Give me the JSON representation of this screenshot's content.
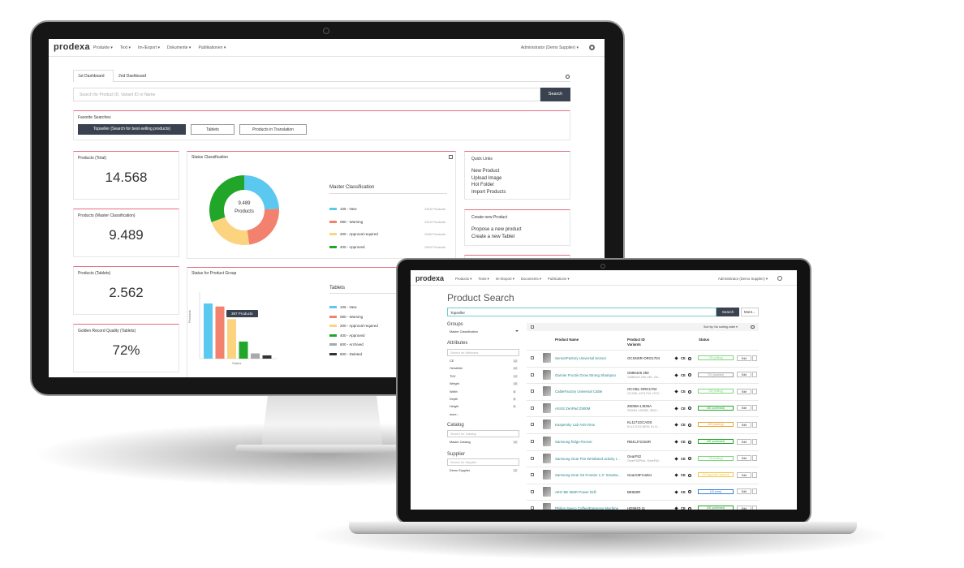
{
  "monitor": {
    "nav": {
      "logo": "prodexa",
      "menu": [
        "Produkte ▾",
        "Text ▾",
        "Im-/Export ▾",
        "Dokumente ▾",
        "Publikationen ▾"
      ],
      "user": "Administrator (Demo Supplier) ▾"
    },
    "tabs": [
      "1st Dashboard",
      "2nd Dashboard"
    ],
    "search": {
      "placeholder": "Search for Product ID, Variant ID or Name",
      "button": "Search"
    },
    "favorites": {
      "title": "Favorite Searches",
      "items": [
        "Topseller (Search for best-selling products)",
        "Tablets",
        "Products in Translation"
      ]
    },
    "kpis": [
      {
        "label": "Products (Total)",
        "value": "14.568"
      },
      {
        "label": "Products (Master Classification)",
        "value": "9.489"
      },
      {
        "label": "Products (Tablets)",
        "value": "2.562"
      },
      {
        "label": "Golden Record Quality (Tablets)",
        "value": "72%"
      }
    ],
    "status_classification": {
      "title": "Status Classification",
      "center_value": "9.489",
      "center_label": "Products",
      "legend_title": "Master Classification",
      "items": [
        {
          "name": "105 - New",
          "color": "#5bc8f0",
          "value": 2316,
          "value_label": "2316 Products"
        },
        {
          "name": "080 - Warning",
          "color": "#f2826e",
          "value": 2210,
          "value_label": "2210 Products"
        },
        {
          "name": "200 - Approval required",
          "color": "#fcd37f",
          "value": 2060,
          "value_label": "2060 Products"
        },
        {
          "name": "400 - Approved",
          "color": "#22a629",
          "value": 2903,
          "value_label": "2903 Products"
        }
      ]
    },
    "quick_links": {
      "title": "Quick Links",
      "items": [
        "New Product",
        "Upload Image",
        "Hot Folder",
        "Import Products"
      ]
    },
    "create_product": {
      "title": "Create new Product",
      "items": [
        "Propose a new product",
        "Create a new Tablet"
      ]
    },
    "status_product_group": {
      "title": "Status for Product Group",
      "legend_title": "Tablets",
      "y_label": "Products",
      "x_label": "Status",
      "tooltip": "397 Products",
      "items": [
        {
          "name": "105 - New",
          "color": "#5bc8f0",
          "value": 420
        },
        {
          "name": "080 - Warning",
          "color": "#f2826e",
          "value": 397
        },
        {
          "name": "200 - Approval required",
          "color": "#fcd37f",
          "value": 300
        },
        {
          "name": "400 - Approved",
          "color": "#22a629",
          "value": 130
        },
        {
          "name": "600 - Archived",
          "color": "#a9a9a9",
          "value": 40
        },
        {
          "name": "800 - Deleted",
          "color": "#333333",
          "value": 25
        }
      ]
    }
  },
  "laptop": {
    "nav": {
      "logo": "prodexa",
      "menu": [
        "Products ▾",
        "Texts ▾",
        "Im-/Export ▾",
        "Documents ▾",
        "Publications ▾"
      ],
      "user": "Administrator (Demo Supplier) ▾"
    },
    "title": "Product Search",
    "search": {
      "value": "Topseller",
      "button": "Search",
      "more": "More..."
    },
    "sidebar": {
      "groups": {
        "title": "Groups",
        "select": "Master Classification"
      },
      "attributes": {
        "title": "Attributes",
        "placeholder": "Search for Attributes",
        "items": [
          {
            "name": "CE",
            "count": "12"
          },
          {
            "name": "Hersteller",
            "count": "12"
          },
          {
            "name": "TÜV",
            "count": "12"
          },
          {
            "name": "Weight",
            "count": "10"
          },
          {
            "name": "Width",
            "count": "8"
          },
          {
            "name": "Depth",
            "count": "8"
          },
          {
            "name": "Height",
            "count": "8"
          }
        ],
        "more": "more..."
      },
      "catalog": {
        "title": "Catalog",
        "placeholder": "Search for Catalog",
        "item": "Master Catalog",
        "count": "12"
      },
      "supplier": {
        "title": "Supplier",
        "placeholder": "Search for Supplier",
        "item": "Demo Supplier",
        "count": "12"
      }
    },
    "results": {
      "sort": "Sort by: No sorting order ▾",
      "headers": {
        "name": "Product Name",
        "id": "Product ID",
        "variants": "Variants",
        "status": "Status"
      },
      "ce_label": "CE",
      "edit": "Edit",
      "rows": [
        {
          "name": "SensorFactory Universal Sensor",
          "id": "OCSNSR-ORG1704",
          "status": "105 (setting)",
          "status_color": "#7ed67e"
        },
        {
          "name": "Garnier Fructis Grow Strong Shampoo",
          "id": "G686425 250",
          "variants": "G686425 250 UNI, G6...",
          "status": "700 (disabled)",
          "status_color": "#9a9a9a"
        },
        {
          "name": "CableFactory Universal Cable",
          "id": "OCCBL-ORG1704",
          "variants": "OCCBL-1971704, OCC...",
          "status": "105 (setting)",
          "status_color": "#7ed67e"
        },
        {
          "name": "ASUS ZenPad Z500M",
          "id": "Z500M-1J025A",
          "variants": "Z500M 1J025B, Z500...",
          "status": "400 (confirmed)",
          "status_color": "#22a629"
        },
        {
          "name": "Kaspersky Lab Anti-Virus",
          "id": "KL1171GCADS",
          "variants": "KL1171GCAEW, KL11...",
          "status": "080 (warning)",
          "status_color": "#f0a030"
        },
        {
          "name": "Samsung fridge-freezer",
          "id": "RB41J7215SR",
          "status": "400 (confirmed)",
          "status_color": "#22a629"
        },
        {
          "name": "Samsung Gear Fit2 Wristband activity t...",
          "id": "GearFit2",
          "variants": "GearFit2Pink, GearFit2...",
          "status": "105 (setting)",
          "status_color": "#7ed67e"
        },
        {
          "name": "Samsung Gear S3 Frontier 1.3\" Smartw...",
          "id": "GearS3Frontier",
          "status": "200 (approval required)",
          "status_color": "#f5c542"
        },
        {
          "name": "AEG BE 650R Power Drill",
          "id": "BE650R",
          "status": "100 (new)",
          "status_color": "#3a7fd5"
        },
        {
          "name": "Philips Saeco Coffee/Espresso Machine",
          "id": "HD8943-11",
          "status": "400 (confirmed)",
          "status_color": "#22a629"
        }
      ]
    }
  }
}
